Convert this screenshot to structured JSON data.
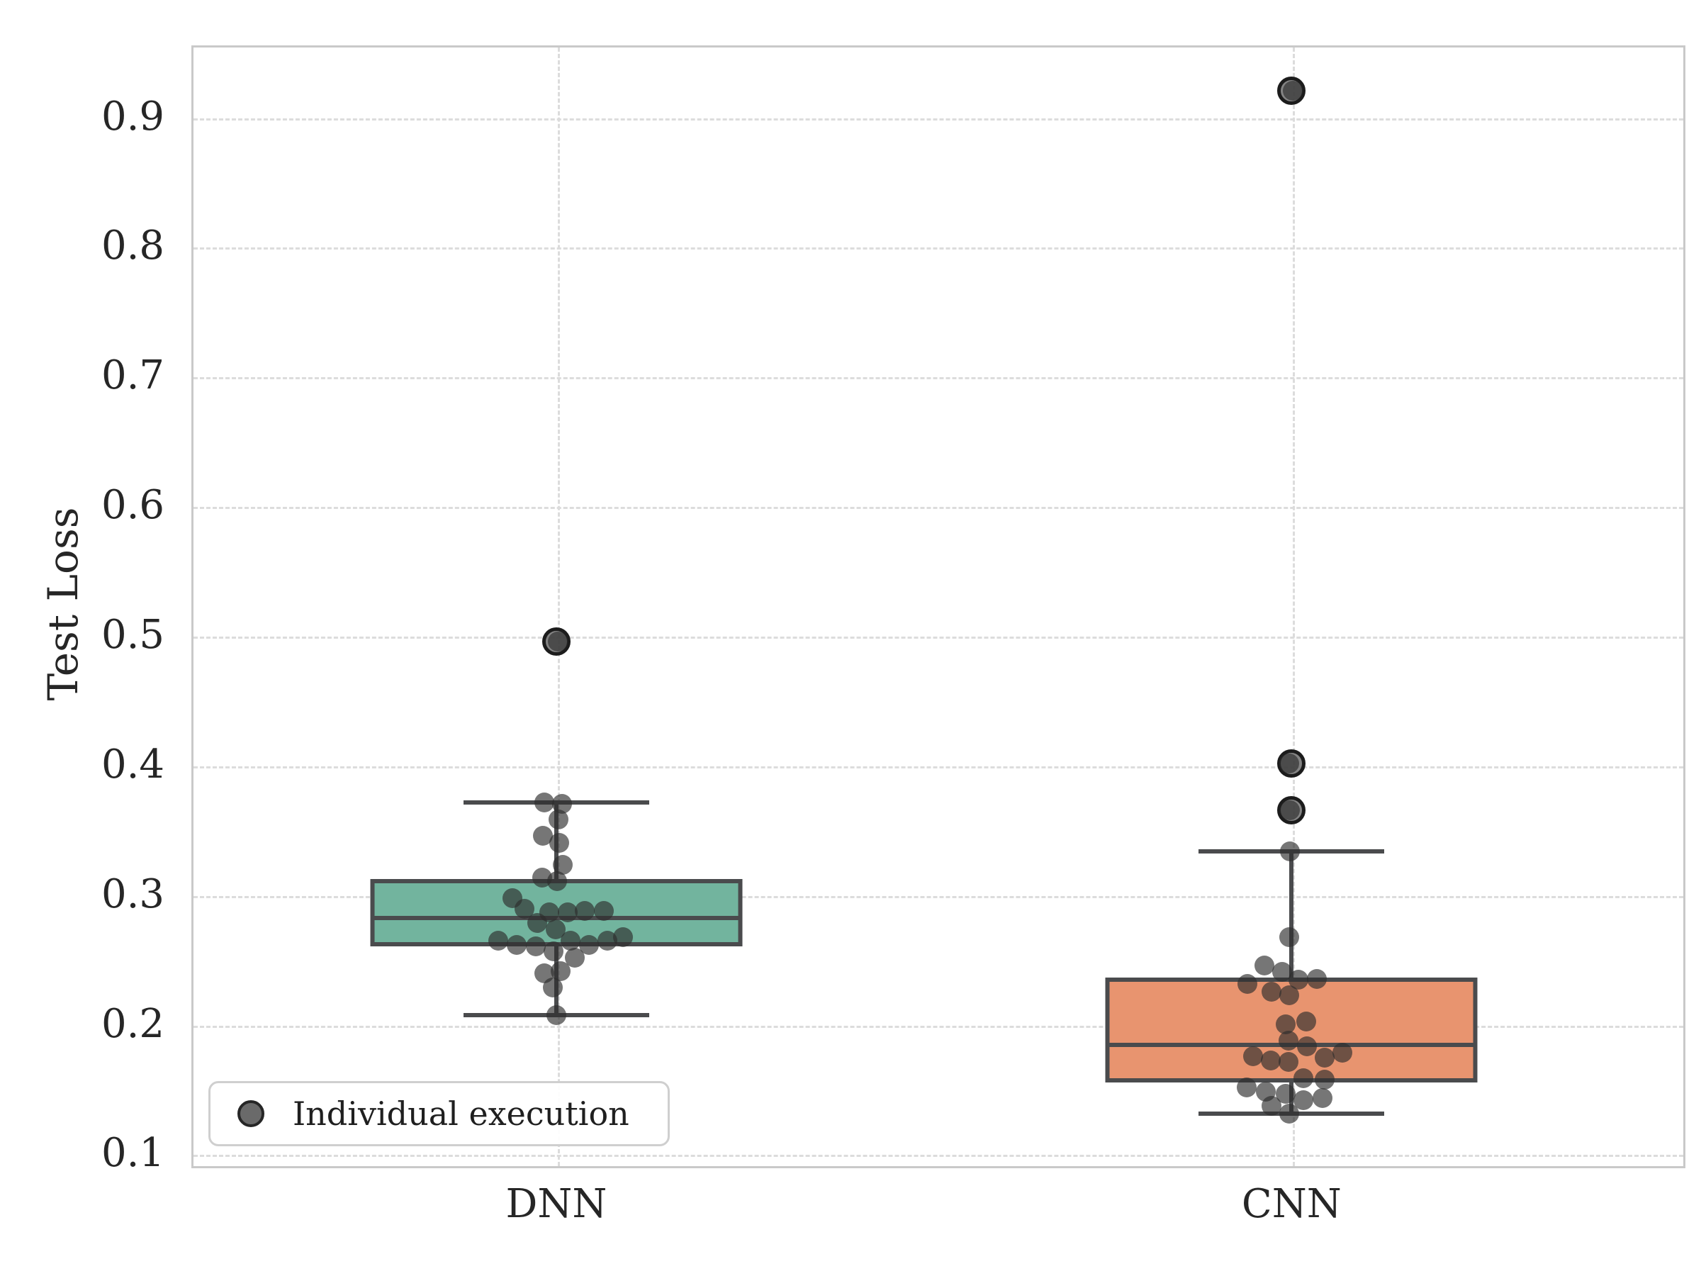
{
  "chart_data": {
    "type": "box",
    "title": "",
    "xlabel": "",
    "ylabel": "Test Loss",
    "categories": [
      "DNN",
      "CNN"
    ],
    "category_pos": [
      0.245,
      0.7385
    ],
    "y_ticks": [
      0.1,
      0.2,
      0.3,
      0.4,
      0.5,
      0.6,
      0.7,
      0.8,
      0.9
    ],
    "ylim": [
      0.092,
      0.955
    ],
    "grid": "dashed, both axes, light gray",
    "legend": {
      "label": "Individual execution",
      "position": "lower left"
    },
    "colors": {
      "dnn_box_fill": "#72b49e",
      "cnn_box_fill": "#e8946f",
      "box_edge": "#4a4b4d",
      "strip_point": "rgba(45,45,45,0.65)",
      "flier_fill": "rgba(110,110,110,0.85)",
      "flier_edge": "#1c1c1c",
      "text": "#262626",
      "grid_line": "#dcdcdc",
      "spine": "#c9c9c9"
    },
    "boxes": [
      {
        "category": "DNN",
        "fill": "#72b49e",
        "q1": 0.26,
        "median": 0.282,
        "q3": 0.312,
        "whisker_low": 0.207,
        "whisker_high": 0.371,
        "outliers": [
          0.495
        ]
      },
      {
        "category": "CNN",
        "fill": "#e8946f",
        "q1": 0.155,
        "median": 0.184,
        "q3": 0.236,
        "whisker_low": 0.131,
        "whisker_high": 0.333,
        "outliers": [
          0.365,
          0.401,
          0.92
        ]
      }
    ],
    "points": [
      {
        "category": "DNN",
        "values_jitter": [
          [
            0.495,
            2
          ],
          [
            0.371,
            -17
          ],
          [
            0.37,
            8
          ],
          [
            0.358,
            3
          ],
          [
            0.345,
            -19
          ],
          [
            0.34,
            4
          ],
          [
            0.323,
            9
          ],
          [
            0.313,
            -20
          ],
          [
            0.31,
            1
          ],
          [
            0.297,
            -62
          ],
          [
            0.289,
            -45
          ],
          [
            0.287,
            40
          ],
          [
            0.287,
            67
          ],
          [
            0.286,
            -10
          ],
          [
            0.286,
            16
          ],
          [
            0.278,
            -27
          ],
          [
            0.273,
            -1
          ],
          [
            0.267,
            94
          ],
          [
            0.264,
            -82
          ],
          [
            0.264,
            20
          ],
          [
            0.264,
            72
          ],
          [
            0.261,
            -56
          ],
          [
            0.261,
            46
          ],
          [
            0.26,
            -29
          ],
          [
            0.256,
            -4
          ],
          [
            0.251,
            26
          ],
          [
            0.241,
            6
          ],
          [
            0.239,
            -17
          ],
          [
            0.228,
            -5
          ],
          [
            0.207,
            0
          ]
        ]
      },
      {
        "category": "CNN",
        "values_jitter": [
          [
            0.92,
            2
          ],
          [
            0.401,
            -3
          ],
          [
            0.365,
            -2
          ],
          [
            0.333,
            -2
          ],
          [
            0.267,
            -3
          ],
          [
            0.245,
            -38
          ],
          [
            0.24,
            -13
          ],
          [
            0.235,
            36
          ],
          [
            0.234,
            10
          ],
          [
            0.231,
            -62
          ],
          [
            0.225,
            -28
          ],
          [
            0.222,
            -3
          ],
          [
            0.202,
            21
          ],
          [
            0.2,
            -8
          ],
          [
            0.187,
            -4
          ],
          [
            0.183,
            22
          ],
          [
            0.178,
            72
          ],
          [
            0.175,
            -54
          ],
          [
            0.174,
            47
          ],
          [
            0.172,
            -29
          ],
          [
            0.171,
            -4
          ],
          [
            0.158,
            17
          ],
          [
            0.157,
            47
          ],
          [
            0.151,
            -63
          ],
          [
            0.148,
            -36
          ],
          [
            0.146,
            -8
          ],
          [
            0.143,
            44
          ],
          [
            0.141,
            17
          ],
          [
            0.137,
            -28
          ],
          [
            0.131,
            -3
          ]
        ]
      }
    ]
  }
}
